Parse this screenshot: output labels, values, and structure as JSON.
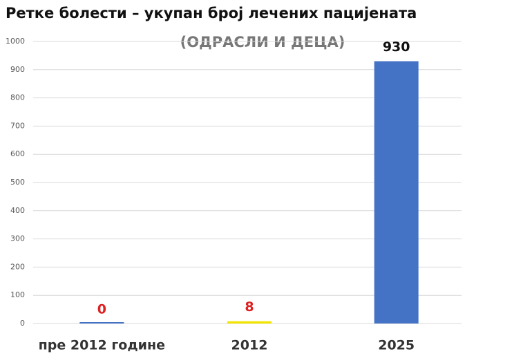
{
  "chart_data": {
    "type": "bar",
    "title": "Ретке болести – укупан број лечених пацијената",
    "subtitle": "(ОДРАСЛИ И ДЕЦА)",
    "categories": [
      "пре 2012 године",
      "2012",
      "2025"
    ],
    "values": [
      0,
      8,
      930
    ],
    "colors": [
      "#4472c4",
      "#f2e600",
      "#4472c4"
    ],
    "value_label_colors": [
      "#e02020",
      "#e02020",
      "#111111"
    ],
    "ylim": [
      0,
      1000
    ],
    "yticks": [
      0,
      100,
      200,
      300,
      400,
      500,
      600,
      700,
      800,
      900,
      1000
    ],
    "grid": true
  }
}
